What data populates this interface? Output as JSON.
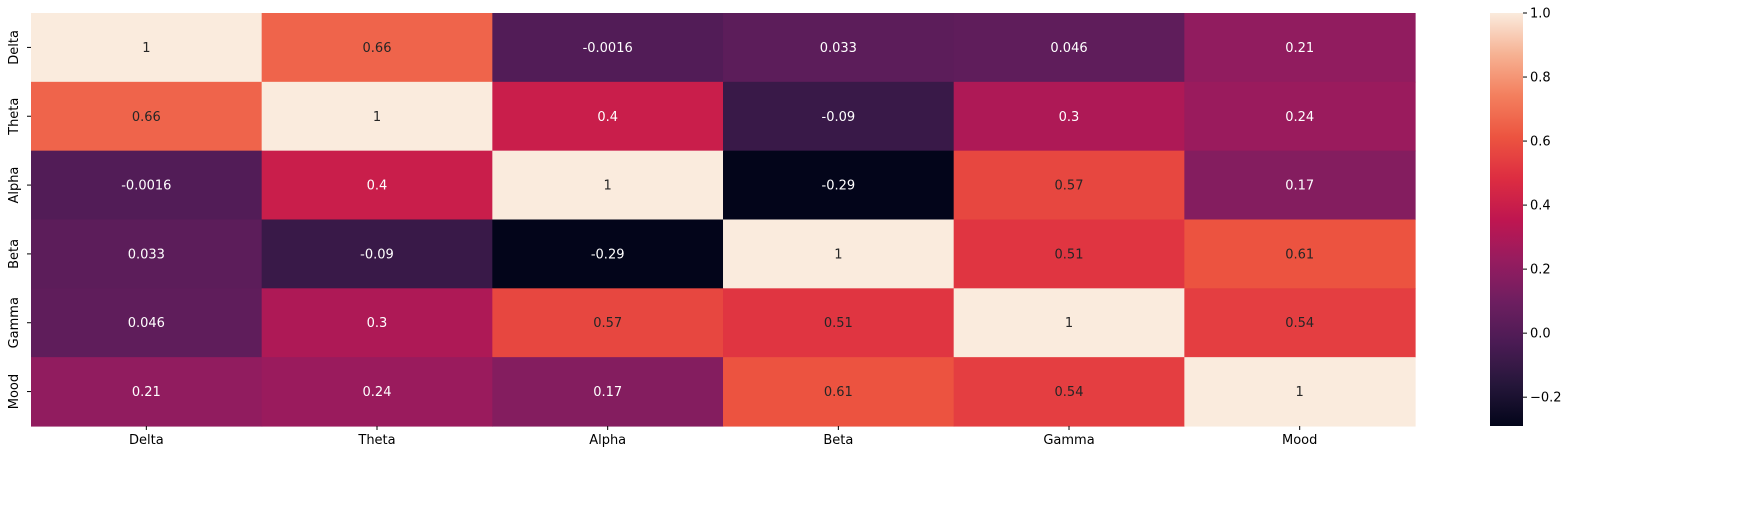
{
  "chart_data": {
    "type": "heatmap",
    "title": "",
    "xlabel": "",
    "ylabel": "",
    "x_categories": [
      "Delta",
      "Theta",
      "Alpha",
      "Beta",
      "Gamma",
      "Mood"
    ],
    "y_categories": [
      "Delta",
      "Theta",
      "Alpha",
      "Beta",
      "Gamma",
      "Mood"
    ],
    "values": [
      [
        1,
        0.66,
        -0.0016,
        0.033,
        0.046,
        0.21
      ],
      [
        0.66,
        1,
        0.4,
        -0.09,
        0.3,
        0.24
      ],
      [
        -0.0016,
        0.4,
        1,
        -0.29,
        0.57,
        0.17
      ],
      [
        0.033,
        -0.09,
        -0.29,
        1,
        0.51,
        0.61
      ],
      [
        0.046,
        0.3,
        0.57,
        0.51,
        1,
        0.54
      ],
      [
        0.21,
        0.24,
        0.17,
        0.61,
        0.54,
        1
      ]
    ],
    "annotations": [
      [
        "1",
        "0.66",
        "-0.0016",
        "0.033",
        "0.046",
        "0.21"
      ],
      [
        "0.66",
        "1",
        "0.4",
        "-0.09",
        "0.3",
        "0.24"
      ],
      [
        "-0.0016",
        "0.4",
        "1",
        "-0.29",
        "0.57",
        "0.17"
      ],
      [
        "0.033",
        "-0.09",
        "-0.29",
        "1",
        "0.51",
        "0.61"
      ],
      [
        "0.046",
        "0.3",
        "0.57",
        "0.51",
        "1",
        "0.54"
      ],
      [
        "0.21",
        "0.24",
        "0.17",
        "0.61",
        "0.54",
        "1"
      ]
    ],
    "colormap": "rocket",
    "vmin": -0.29,
    "vmax": 1,
    "colorbar": {
      "ticks": [
        1.0,
        0.8,
        0.6,
        0.4,
        0.2,
        0.0,
        -0.2
      ],
      "tick_labels": [
        "1.0",
        "0.8",
        "0.6",
        "0.4",
        "0.2",
        "0.0",
        "−0.2"
      ]
    },
    "grid": false,
    "legend": "colorbar-right"
  }
}
